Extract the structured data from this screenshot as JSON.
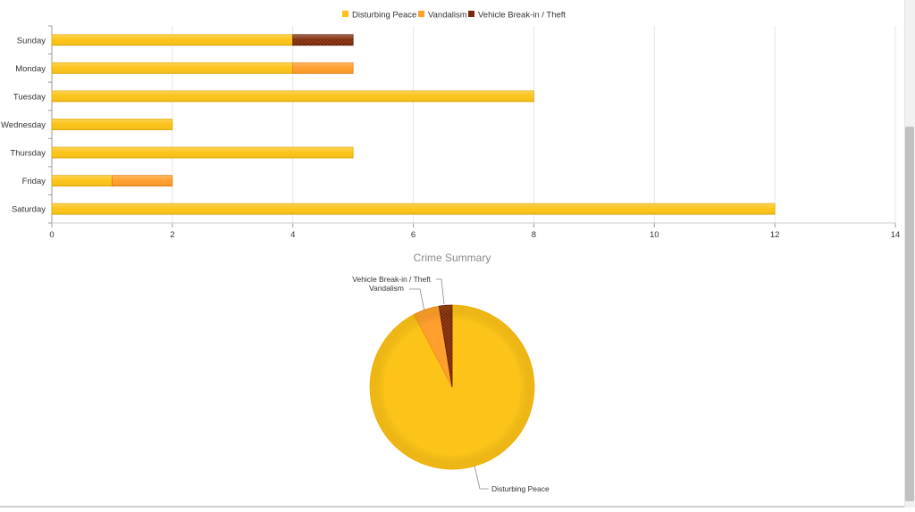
{
  "chart_data": [
    {
      "type": "bar",
      "orientation": "horizontal",
      "stacked": true,
      "categories": [
        "Sunday",
        "Monday",
        "Tuesday",
        "Wednesday",
        "Thursday",
        "Friday",
        "Saturday"
      ],
      "series": [
        {
          "name": "Disturbing Peace",
          "color": "#fcc419",
          "values": [
            4,
            4,
            8,
            2,
            5,
            1,
            12
          ]
        },
        {
          "name": "Vandalism",
          "color": "#ff9f2e",
          "values": [
            0,
            1,
            0,
            0,
            0,
            1,
            0
          ]
        },
        {
          "name": "Vehicle Break-in / Theft",
          "color": "#7a2a0c",
          "values": [
            1,
            0,
            0,
            0,
            0,
            0,
            0
          ]
        }
      ],
      "xlim": [
        0,
        14
      ],
      "xticks": [
        0,
        2,
        4,
        6,
        8,
        10,
        12,
        14
      ],
      "grid": true,
      "legend_position": "top-center"
    },
    {
      "type": "pie",
      "title": "Crime Summary",
      "labels": [
        "Disturbing Peace",
        "Vandalism",
        "Vehicle Break-in / Theft"
      ],
      "values": [
        36,
        2,
        1
      ],
      "colors": [
        "#fcc419",
        "#ff9f2e",
        "#7a2a0c"
      ]
    }
  ]
}
